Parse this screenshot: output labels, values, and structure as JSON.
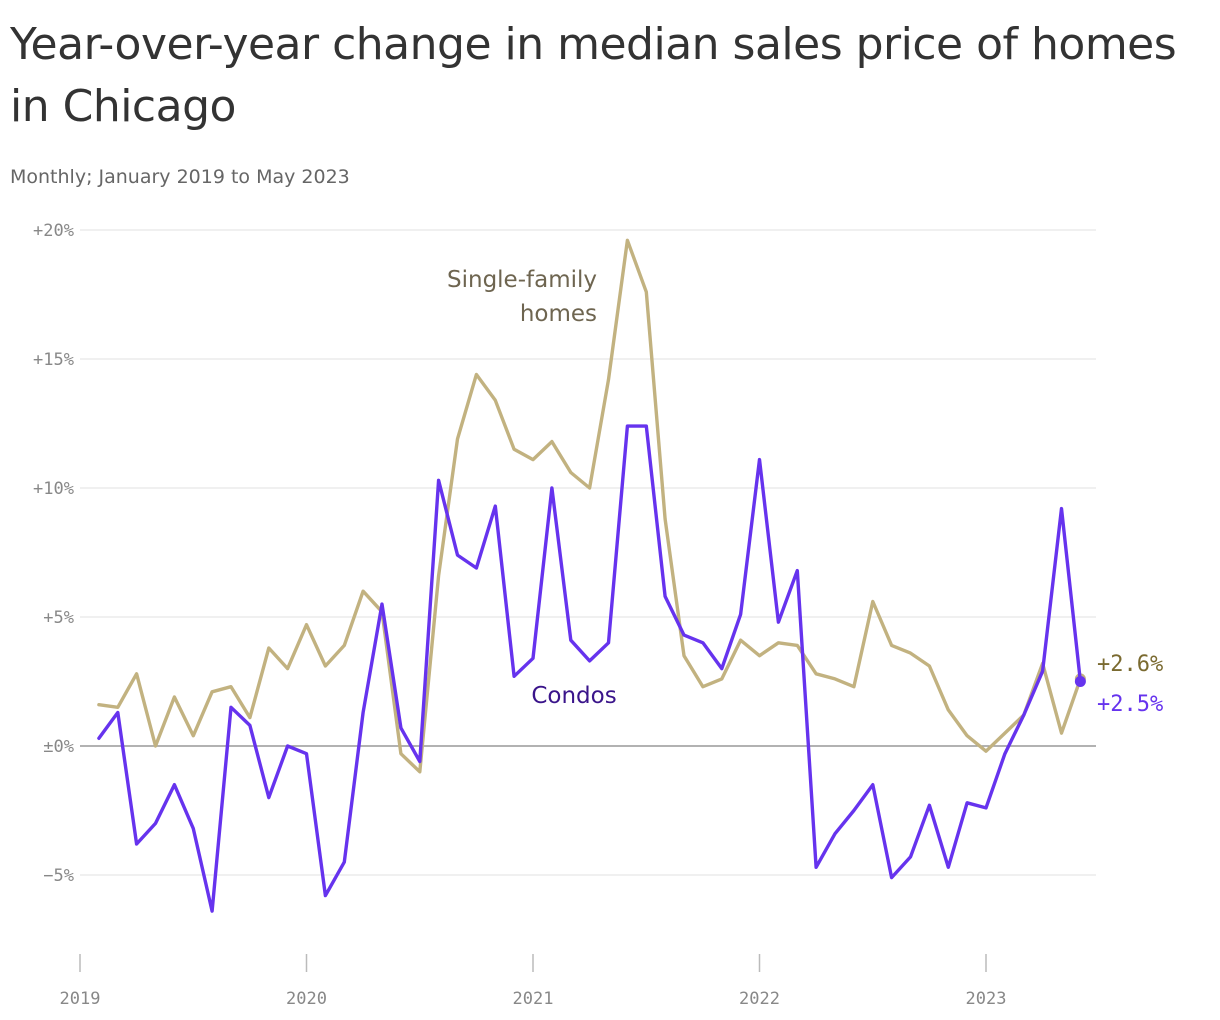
{
  "chart_data": {
    "type": "line",
    "title": "Year-over-year change in median sales price of homes in Chicago",
    "subtitle": "Monthly; January 2019 to May 2023",
    "x_ticks": [
      "2019",
      "2020",
      "2021",
      "2022",
      "2023"
    ],
    "y_ticks": [
      {
        "value": 20,
        "label": "+20%"
      },
      {
        "value": 15,
        "label": "+15%"
      },
      {
        "value": 10,
        "label": "+10%"
      },
      {
        "value": 5,
        "label": "+5%"
      },
      {
        "value": 0,
        "label": "±0%"
      },
      {
        "value": -5,
        "label": "−5%"
      }
    ],
    "ylim": [
      -8,
      20
    ],
    "x_start": "2019-01",
    "grid": true,
    "series": [
      {
        "name": "Single-family homes",
        "name_lines": [
          "Single-family",
          "homes"
        ],
        "color": "#c2b280",
        "label_color": "#6e6550",
        "end_label": "+2.6%",
        "end_label_color": "#7a6a30",
        "values": [
          1.6,
          1.5,
          2.8,
          0.0,
          1.9,
          0.4,
          2.1,
          2.3,
          1.1,
          3.8,
          3.0,
          4.7,
          3.1,
          3.9,
          6.0,
          5.2,
          -0.3,
          -1.0,
          6.6,
          11.9,
          14.4,
          13.4,
          11.5,
          11.1,
          11.8,
          10.6,
          10.0,
          14.2,
          19.6,
          17.6,
          8.8,
          3.5,
          2.3,
          2.6,
          4.1,
          3.5,
          4.0,
          3.9,
          2.8,
          2.6,
          2.3,
          5.6,
          3.9,
          3.6,
          3.1,
          1.4,
          0.4,
          -0.2,
          0.5,
          1.2,
          3.2,
          0.5,
          2.6
        ]
      },
      {
        "name": "Condos",
        "name_lines": [
          "Condos"
        ],
        "color": "#6633ee",
        "label_color": "#3a148a",
        "end_label": "+2.5%",
        "end_label_color": "#6633ee",
        "values": [
          0.3,
          1.3,
          -3.8,
          -3.0,
          -1.5,
          -3.2,
          -6.4,
          1.5,
          0.8,
          -2.0,
          0.0,
          -0.3,
          -5.8,
          -4.5,
          1.3,
          5.5,
          0.7,
          -0.6,
          10.3,
          7.4,
          6.9,
          9.3,
          2.7,
          3.4,
          10.0,
          4.1,
          3.3,
          4.0,
          12.4,
          12.4,
          5.8,
          4.3,
          4.0,
          3.0,
          5.1,
          11.1,
          4.8,
          6.8,
          -4.7,
          -3.4,
          -2.5,
          -1.5,
          -5.1,
          -4.3,
          -2.3,
          -4.7,
          -2.2,
          -2.4,
          -0.3,
          1.2,
          2.9,
          9.2,
          2.5
        ]
      }
    ]
  }
}
